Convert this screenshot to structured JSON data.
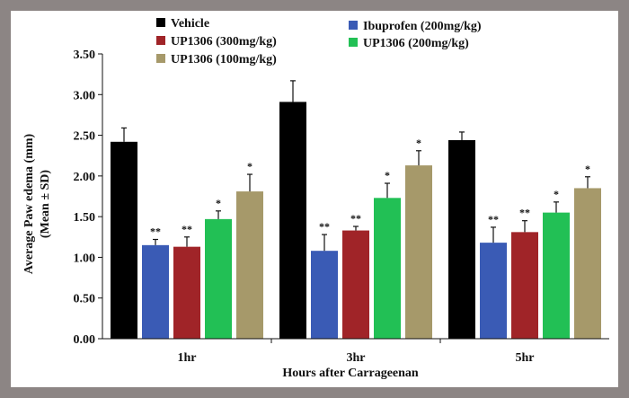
{
  "chart_data": {
    "type": "bar",
    "title": "",
    "xlabel": "Hours after Carrageenan",
    "ylabel_line1": "Average Paw edema (mm)",
    "ylabel_line2": "(Mean ± SD)",
    "ylim": [
      0,
      3.5
    ],
    "y_ticks": [
      "0.00",
      "0.50",
      "1.00",
      "1.50",
      "2.00",
      "2.50",
      "3.00",
      "3.50"
    ],
    "categories": [
      "1hr",
      "3hr",
      "5hr"
    ],
    "legend_position": "top",
    "series": [
      {
        "name": "Vehicle",
        "color": "#000000",
        "values": [
          2.42,
          2.91,
          2.44
        ],
        "errors": [
          0.17,
          0.26,
          0.1
        ],
        "markers": [
          "",
          "",
          ""
        ]
      },
      {
        "name": "Ibuprofen (200mg/kg)",
        "color": "#3a5bb5",
        "values": [
          1.15,
          1.08,
          1.18
        ],
        "errors": [
          0.07,
          0.2,
          0.19
        ],
        "markers": [
          "**",
          "**",
          "**"
        ]
      },
      {
        "name": "UP1306 (300mg/kg)",
        "color": "#a02428",
        "values": [
          1.13,
          1.33,
          1.31
        ],
        "errors": [
          0.12,
          0.05,
          0.14
        ],
        "markers": [
          "**",
          "**",
          "**"
        ]
      },
      {
        "name": "UP1306 (200mg/kg)",
        "color": "#22c055",
        "values": [
          1.47,
          1.73,
          1.55
        ],
        "errors": [
          0.1,
          0.18,
          0.13
        ],
        "markers": [
          "*",
          "*",
          "*"
        ]
      },
      {
        "name": "UP1306 (100mg/kg)",
        "color": "#a6996a",
        "values": [
          1.81,
          2.13,
          1.85
        ],
        "errors": [
          0.21,
          0.18,
          0.14
        ],
        "markers": [
          "*",
          "*",
          "*"
        ]
      }
    ]
  }
}
